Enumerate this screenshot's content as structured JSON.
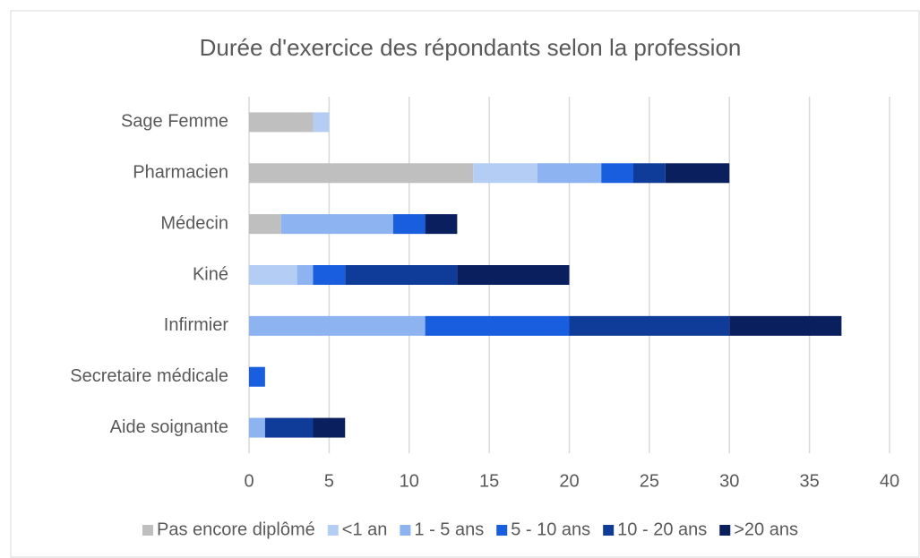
{
  "chart_data": {
    "type": "stacked_barh",
    "title": "Durée d'exercice des répondants selon la profession",
    "categories": [
      "Sage Femme",
      "Pharmacien",
      "Médecin",
      "Kiné",
      "Infirmier",
      "Secretaire médicale",
      "Aide soignante"
    ],
    "series": [
      {
        "name": "Pas encore diplômé",
        "color": "#bfbfbf",
        "values": [
          4,
          14,
          2,
          0,
          0,
          0,
          0
        ]
      },
      {
        "name": "<1 an",
        "color": "#b4cdf5",
        "values": [
          1,
          4,
          0,
          3,
          0,
          0,
          0
        ]
      },
      {
        "name": "1 - 5 ans",
        "color": "#8db3f0",
        "values": [
          0,
          4,
          7,
          1,
          11,
          0,
          1
        ]
      },
      {
        "name": "5 - 10 ans",
        "color": "#1a5ee0",
        "values": [
          0,
          2,
          2,
          2,
          9,
          1,
          0
        ]
      },
      {
        "name": "10 - 20 ans",
        "color": "#0e3c98",
        "values": [
          0,
          2,
          0,
          7,
          10,
          0,
          3
        ]
      },
      {
        "name": ">20 ans",
        "color": "#0a1f5e",
        "values": [
          0,
          4,
          2,
          7,
          7,
          0,
          2
        ]
      }
    ],
    "xlim": [
      0,
      40
    ],
    "xticks": [
      0,
      5,
      10,
      15,
      20,
      25,
      30,
      35,
      40
    ],
    "grid": true,
    "legend": "bottom"
  }
}
